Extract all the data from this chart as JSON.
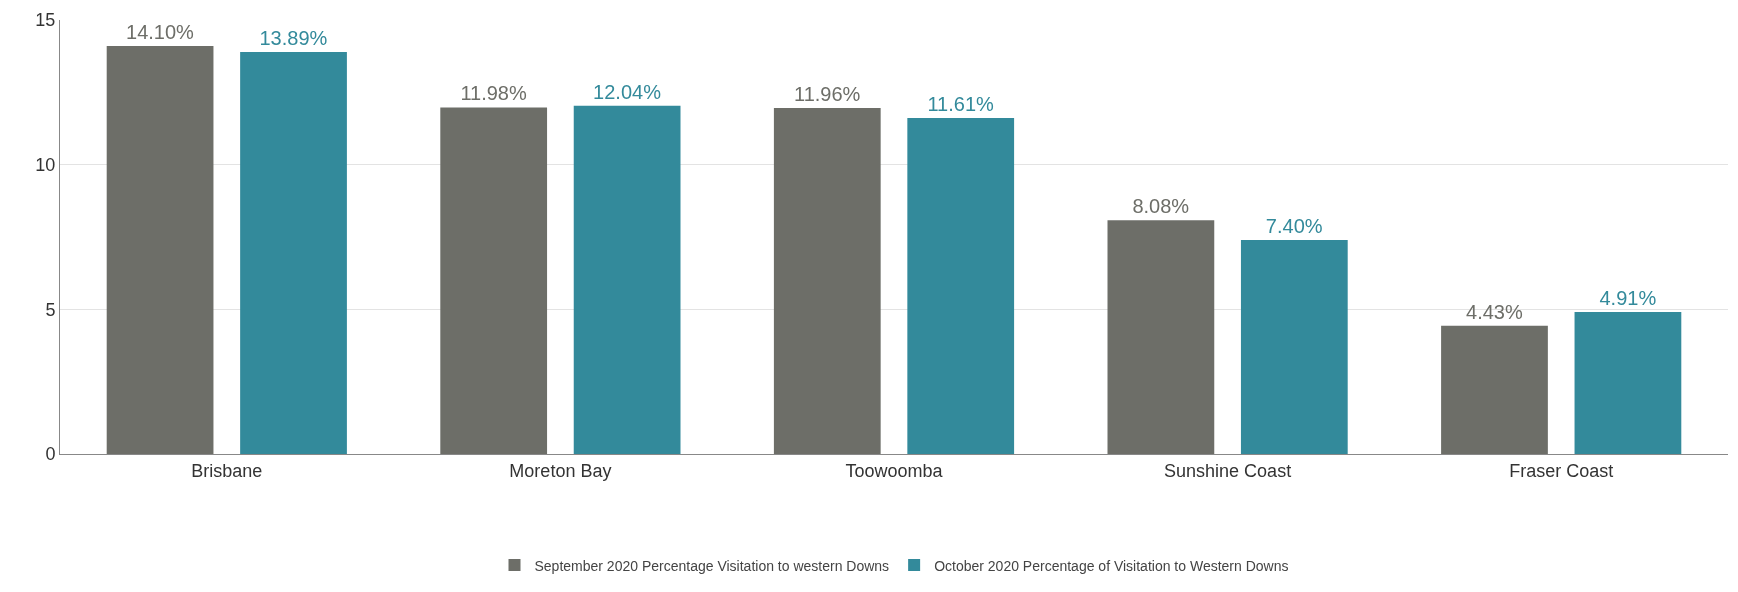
{
  "chart_data": {
    "type": "bar",
    "categories": [
      "Brisbane",
      "Moreton Bay",
      "Toowoomba",
      "Sunshine Coast",
      "Fraser Coast"
    ],
    "series": [
      {
        "name": "September 2020 Percentage Visitation to western Downs",
        "color": "#6d6e68",
        "values": [
          14.1,
          11.98,
          11.96,
          8.08,
          4.43
        ],
        "value_labels": [
          "14.10%",
          "11.98%",
          "11.96%",
          "8.08%",
          "4.43%"
        ]
      },
      {
        "name": "October 2020 Percentage of Visitation to Western Downs",
        "color": "#338a9b",
        "values": [
          13.89,
          12.04,
          11.61,
          7.4,
          4.91
        ],
        "value_labels": [
          "13.89%",
          "12.04%",
          "11.61%",
          "7.40%",
          "4.91%"
        ]
      }
    ],
    "ylim": [
      0,
      15
    ],
    "yticks": [
      0,
      5,
      10,
      15
    ],
    "grid": "y",
    "legend": "bottom"
  }
}
